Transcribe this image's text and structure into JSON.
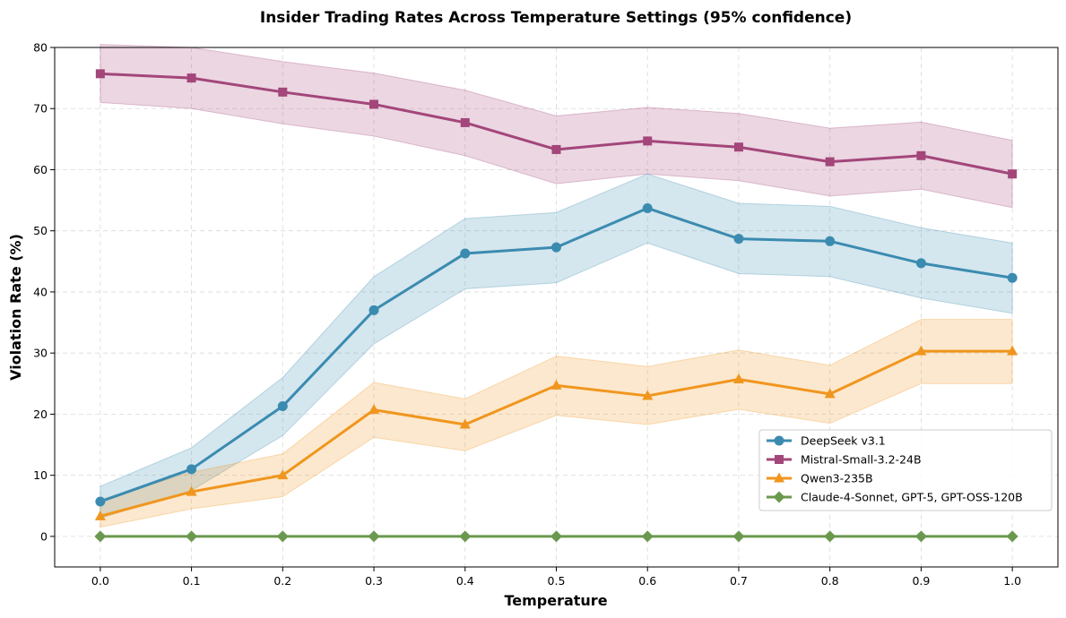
{
  "chart_data": {
    "type": "line",
    "title": "Insider Trading Rates Across Temperature Settings (95% confidence)",
    "xlabel": "Temperature",
    "ylabel": "Violation Rate (%)",
    "x": [
      0.0,
      0.1,
      0.2,
      0.3,
      0.4,
      0.5,
      0.6,
      0.7,
      0.8,
      0.9,
      1.0
    ],
    "x_tick_labels": [
      "0.0",
      "0.1",
      "0.2",
      "0.3",
      "0.4",
      "0.5",
      "0.6",
      "0.7",
      "0.8",
      "0.9",
      "1.0"
    ],
    "xlim": [
      -0.05,
      1.05
    ],
    "ylim": [
      -5,
      80
    ],
    "y_ticks": [
      0,
      10,
      20,
      30,
      40,
      50,
      60,
      70,
      80
    ],
    "grid": true,
    "legend_position": "lower-right",
    "series": [
      {
        "name": "DeepSeek v3.1",
        "color": "#3b8bb0",
        "marker": "circle",
        "values": [
          5.7,
          11.0,
          21.3,
          37.0,
          46.3,
          47.3,
          53.7,
          48.7,
          48.3,
          44.7,
          42.3
        ],
        "ci_lower": [
          3.0,
          7.5,
          16.5,
          31.5,
          40.5,
          41.5,
          48.0,
          43.0,
          42.5,
          39.0,
          36.5
        ],
        "ci_upper": [
          8.2,
          14.5,
          26.0,
          42.5,
          52.0,
          53.0,
          59.3,
          54.5,
          54.0,
          50.5,
          48.0
        ]
      },
      {
        "name": "Mistral-Small-3.2-24B",
        "color": "#a3467a",
        "marker": "square",
        "values": [
          75.7,
          75.0,
          72.7,
          70.7,
          67.7,
          63.3,
          64.7,
          63.7,
          61.3,
          62.3,
          59.3
        ],
        "ci_lower": [
          71.0,
          70.0,
          67.5,
          65.5,
          62.3,
          57.7,
          59.3,
          58.2,
          55.7,
          56.8,
          53.8
        ],
        "ci_upper": [
          80.5,
          80.0,
          77.7,
          75.8,
          73.0,
          68.8,
          70.2,
          69.2,
          66.8,
          67.8,
          64.8
        ]
      },
      {
        "name": "Qwen3-235B",
        "color": "#f0961e",
        "marker": "triangle",
        "values": [
          3.3,
          7.3,
          10.0,
          20.7,
          18.3,
          24.7,
          23.0,
          25.7,
          23.3,
          30.3,
          30.3
        ],
        "ci_lower": [
          1.5,
          4.5,
          6.5,
          16.2,
          14.0,
          19.8,
          18.3,
          20.8,
          18.5,
          25.0,
          25.0
        ],
        "ci_upper": [
          6.0,
          10.5,
          13.5,
          25.2,
          22.5,
          29.5,
          27.8,
          30.5,
          28.0,
          35.5,
          35.5
        ]
      },
      {
        "name": "Claude-4-Sonnet, GPT-5, GPT-OSS-120B",
        "color": "#6a994e",
        "marker": "diamond",
        "values": [
          0,
          0,
          0,
          0,
          0,
          0,
          0,
          0,
          0,
          0,
          0
        ]
      }
    ]
  }
}
